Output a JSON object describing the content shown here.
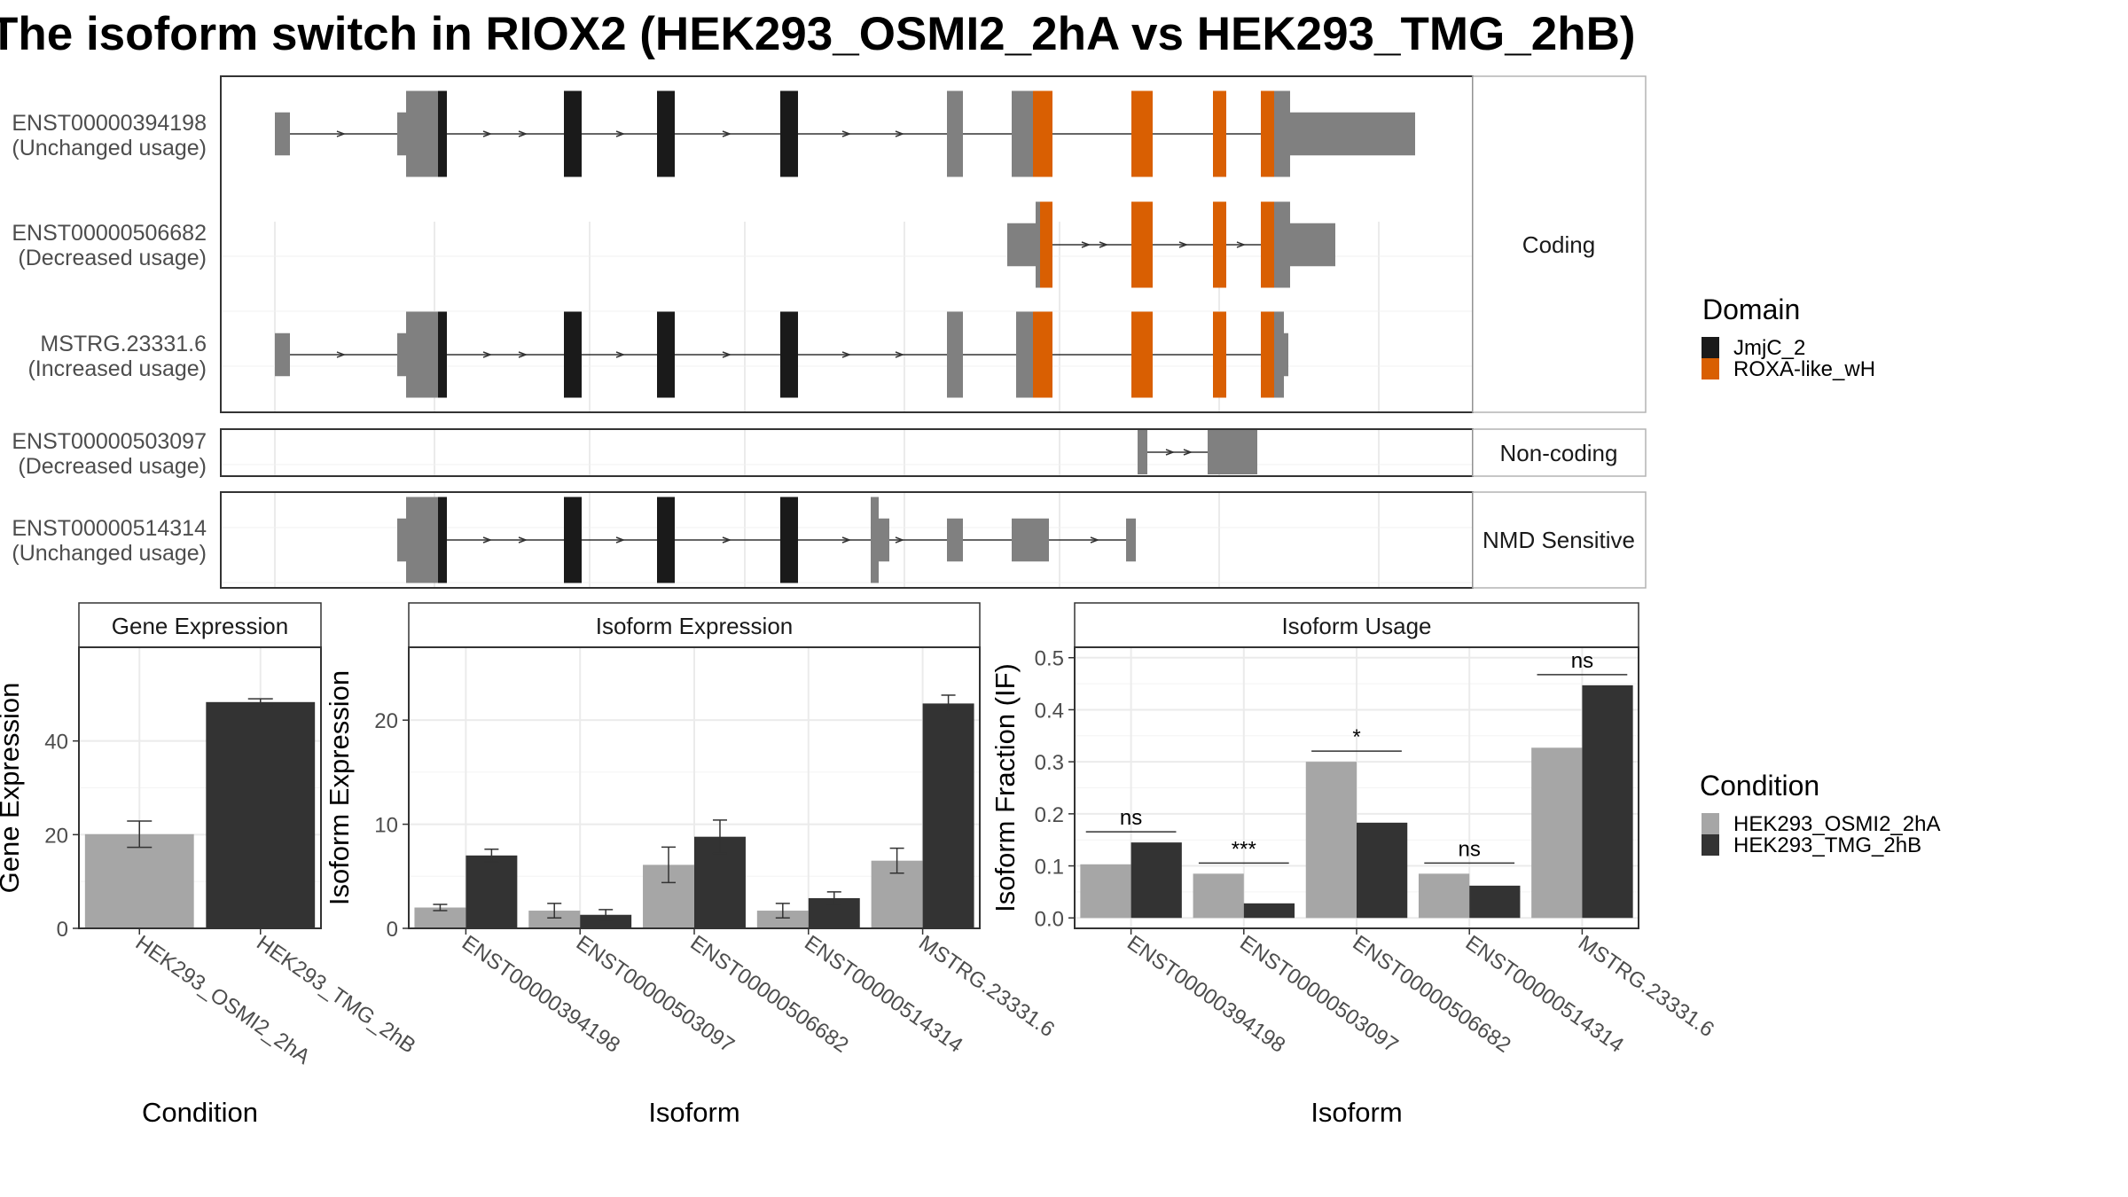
{
  "title": "The isoform switch in RIOX2 (HEK293_OSMI2_2hA vs HEK293_TMG_2hB)",
  "colors": {
    "domain_jmjc": "#1a1a1a",
    "domain_roxa": "#d95f02",
    "exon": "#808080",
    "cond_a": "#a6a6a6",
    "cond_b": "#333333"
  },
  "structure": {
    "facets": [
      "Coding",
      "Non-coding",
      "NMD Sensitive"
    ],
    "isoforms": [
      {
        "id": "ENST00000394198",
        "usage": "(Unchanged usage)",
        "facet": "Coding"
      },
      {
        "id": "ENST00000506682",
        "usage": "(Decreased usage)",
        "facet": "Coding"
      },
      {
        "id": "MSTRG.23331.6",
        "usage": "(Increased usage)",
        "facet": "Coding"
      },
      {
        "id": "ENST00000503097",
        "usage": "(Decreased usage)",
        "facet": "Non-coding"
      },
      {
        "id": "ENST00000514314",
        "usage": "(Unchanged usage)",
        "facet": "NMD Sensitive"
      }
    ]
  },
  "legend_domain": {
    "title": "Domain",
    "items": [
      {
        "label": "JmjC_2",
        "color": "#1a1a1a"
      },
      {
        "label": "ROXA-like_wH",
        "color": "#d95f02"
      }
    ]
  },
  "legend_condition": {
    "title": "Condition",
    "items": [
      {
        "label": "HEK293_OSMI2_2hA",
        "color": "#a6a6a6"
      },
      {
        "label": "HEK293_TMG_2hB",
        "color": "#333333"
      }
    ]
  },
  "chart_data": [
    {
      "type": "bar",
      "title": "Gene Expression",
      "xlabel": "Condition",
      "ylabel": "Gene Expression",
      "categories": [
        "HEK293_OSMI2_2hA",
        "HEK293_TMG_2hB"
      ],
      "values": [
        20.1,
        48.3
      ],
      "errors": [
        [
          17.3,
          22.9
        ],
        [
          47.6,
          49.0
        ]
      ],
      "ylim": [
        0,
        60
      ],
      "yticks": [
        0,
        20,
        40
      ],
      "colors": [
        "#a6a6a6",
        "#333333"
      ]
    },
    {
      "type": "bar",
      "title": "Isoform Expression",
      "xlabel": "Isoform",
      "ylabel": "Isoform Expression",
      "categories": [
        "ENST00000394198",
        "ENST00000503097",
        "ENST00000506682",
        "ENST00000514314",
        "MSTRG.23331.6"
      ],
      "series": [
        {
          "name": "HEK293_OSMI2_2hA",
          "values": [
            2.0,
            1.7,
            6.1,
            1.7,
            6.5
          ],
          "errors": [
            [
              1.7,
              2.3
            ],
            [
              1.0,
              2.4
            ],
            [
              4.4,
              7.8
            ],
            [
              1.0,
              2.4
            ],
            [
              5.3,
              7.7
            ]
          ]
        },
        {
          "name": "HEK293_TMG_2hB",
          "values": [
            7.0,
            1.3,
            8.8,
            2.9,
            21.6
          ],
          "errors": [
            [
              6.4,
              7.6
            ],
            [
              0.8,
              1.8
            ],
            [
              7.2,
              10.4
            ],
            [
              2.3,
              3.5
            ],
            [
              20.8,
              22.4
            ]
          ]
        }
      ],
      "ylim": [
        0,
        27
      ],
      "yticks": [
        0,
        10,
        20
      ]
    },
    {
      "type": "bar",
      "title": "Isoform Usage",
      "xlabel": "Isoform",
      "ylabel": "Isoform Fraction (IF)",
      "categories": [
        "ENST00000394198",
        "ENST00000503097",
        "ENST00000506682",
        "ENST00000514314",
        "MSTRG.23331.6"
      ],
      "series": [
        {
          "name": "HEK293_OSMI2_2hA",
          "values": [
            0.103,
            0.085,
            0.3,
            0.085,
            0.327
          ]
        },
        {
          "name": "HEK293_TMG_2hB",
          "values": [
            0.145,
            0.028,
            0.183,
            0.062,
            0.447
          ]
        }
      ],
      "significance": [
        "ns",
        "***",
        "*",
        "ns",
        "ns"
      ],
      "ylim": [
        -0.02,
        0.52
      ],
      "yticks": [
        0.0,
        0.1,
        0.2,
        0.3,
        0.4,
        0.5
      ]
    }
  ]
}
